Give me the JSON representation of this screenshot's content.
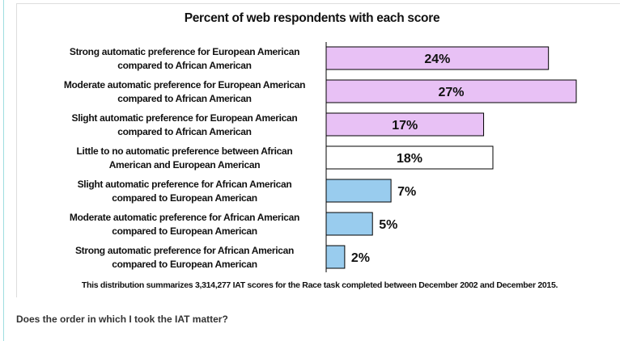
{
  "chart_data": {
    "type": "bar",
    "orientation": "horizontal",
    "title": "Percent of web respondents with each score",
    "categories": [
      [
        "Strong automatic preference for European American",
        "compared to African American"
      ],
      [
        "Moderate automatic preference for European American",
        "compared to African American"
      ],
      [
        "Slight automatic preference for European American",
        "compared to African American"
      ],
      [
        "Little to no automatic preference between African",
        "American and European American"
      ],
      [
        "Slight automatic preference for African American",
        "compared to European American"
      ],
      [
        "Moderate automatic preference for African American",
        "compared to European American"
      ],
      [
        "Strong automatic preference for African American",
        "compared to European American"
      ]
    ],
    "values": [
      24,
      27,
      17,
      18,
      7,
      5,
      2
    ],
    "value_labels": [
      "24%",
      "27%",
      "17%",
      "18%",
      "7%",
      "5%",
      "2%"
    ],
    "colors": [
      "#e8c1f5",
      "#e8c1f5",
      "#e8c1f5",
      "#ffffff",
      "#99ccee",
      "#99ccee",
      "#99ccee"
    ],
    "xlim": [
      0,
      27
    ],
    "note": "This distribution summarizes 3,314,277 IAT scores for the Race  task completed between December 2002 and December 2015."
  },
  "question": "Does the order in which I took the IAT matter?"
}
